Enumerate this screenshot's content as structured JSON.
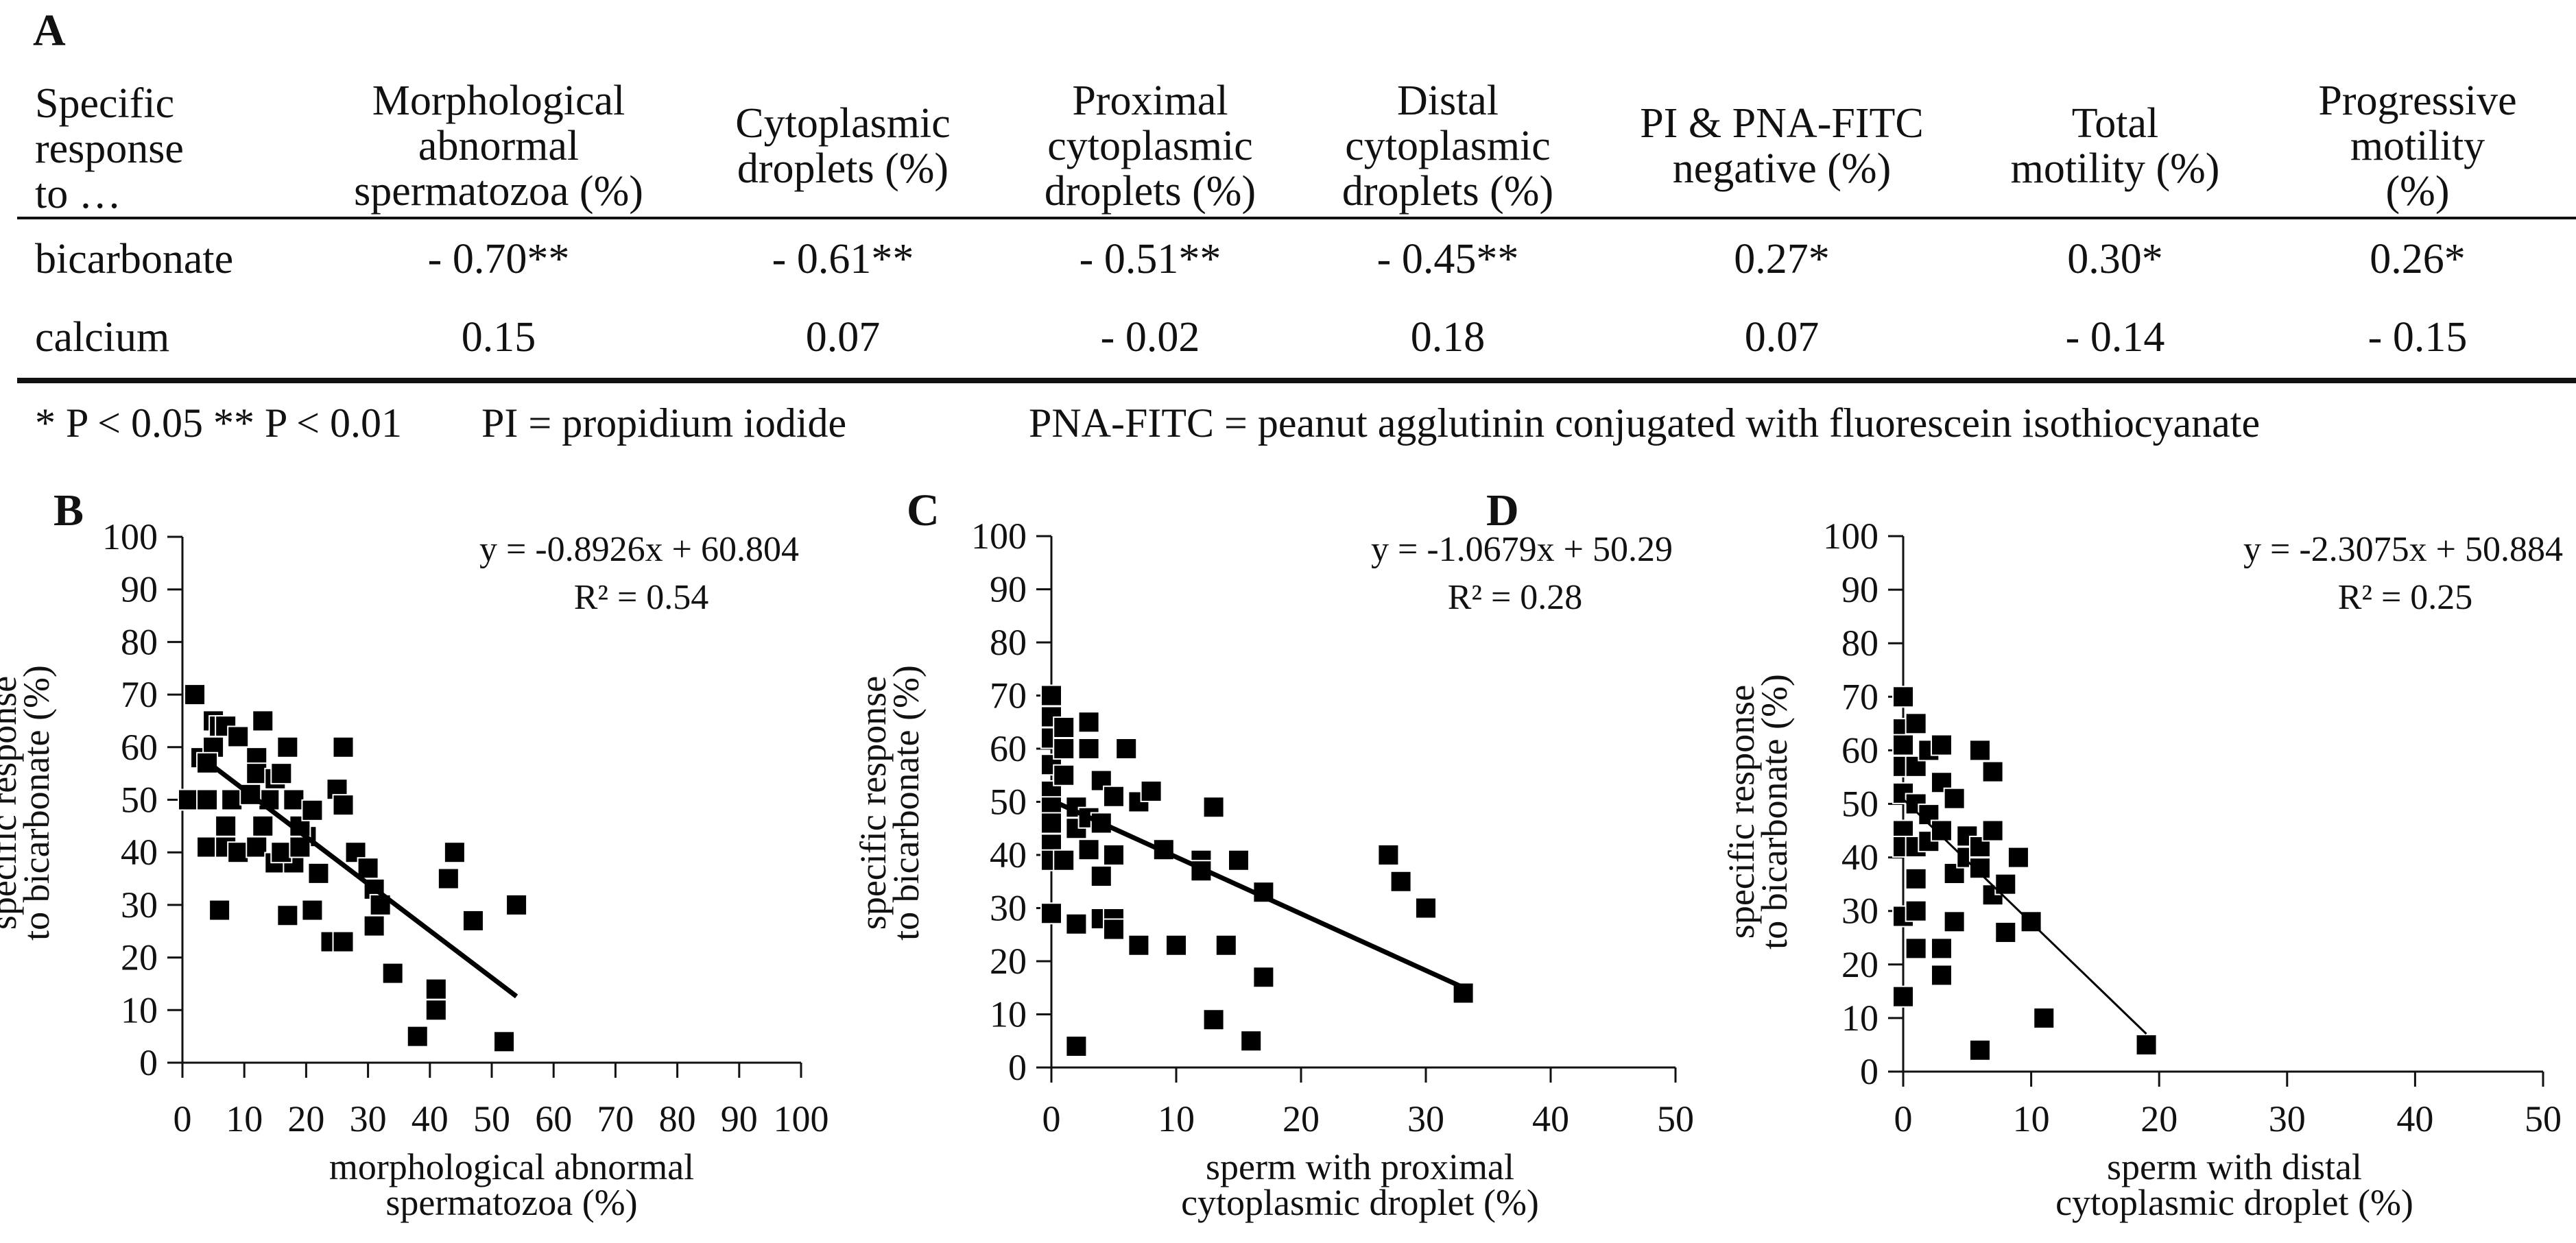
{
  "panel_labels": {
    "a": "A",
    "b": "B",
    "c": "C",
    "d": "D"
  },
  "table": {
    "corner_label": "Specific\nresponse\nto …",
    "columns": [
      "Morphological\nabnormal\nspermatozoa (%)",
      "Cytoplasmic\ndroplets (%)",
      "Proximal\ncytoplasmic\ndroplets (%)",
      "Distal\ncytoplasmic\ndroplets (%)",
      "PI & PNA-FITC\nnegative (%)",
      "Total\nmotility (%)",
      "Progressive\nmotility (%)"
    ],
    "rows": [
      {
        "label": "bicarbonate",
        "values": [
          "- 0.70**",
          "- 0.61**",
          "- 0.51**",
          "- 0.45**",
          "0.27*",
          "0.30*",
          "0.26*"
        ]
      },
      {
        "label": "calcium",
        "values": [
          "0.15",
          "0.07",
          "- 0.02",
          "0.18",
          "0.07",
          "- 0.14",
          "- 0.15"
        ]
      }
    ],
    "footnotes": [
      "* P < 0.05 ** P < 0.01",
      "PI = propidium iodide",
      "PNA-FITC = peanut agglutinin conjugated with fluorescein isothiocyanate"
    ]
  },
  "chart_data": [
    {
      "type": "scatter",
      "panel": "B",
      "xlabel": [
        "morphological abnormal",
        "spermatozoa (%)"
      ],
      "ylabel": [
        "specific response",
        "to bicarbonate (%)"
      ],
      "xlim": [
        0,
        100
      ],
      "ylim": [
        0,
        100
      ],
      "xticks": [
        "0",
        "10",
        "20",
        "30",
        "40",
        "50",
        "60",
        "70",
        "80",
        "90",
        "100"
      ],
      "yticks": [
        "0",
        "10",
        "20",
        "30",
        "40",
        "50",
        "60",
        "70",
        "80",
        "90",
        "100"
      ],
      "equation": "y = -0.8926x + 60.804",
      "r2": "R² = 0.54",
      "trend": {
        "slope": -0.8926,
        "intercept": 60.804,
        "x_range": [
          5,
          54
        ]
      },
      "points": [
        [
          2,
          70
        ],
        [
          3,
          58
        ],
        [
          5,
          65
        ],
        [
          6,
          64
        ],
        [
          7,
          64
        ],
        [
          9,
          62
        ],
        [
          5,
          60
        ],
        [
          4,
          57
        ],
        [
          1,
          50
        ],
        [
          4,
          50
        ],
        [
          8,
          50
        ],
        [
          7,
          45
        ],
        [
          4,
          41
        ],
        [
          7,
          41
        ],
        [
          9,
          40
        ],
        [
          13,
          65
        ],
        [
          12,
          58
        ],
        [
          12,
          55
        ],
        [
          15,
          54
        ],
        [
          16,
          55
        ],
        [
          17,
          60
        ],
        [
          14,
          50
        ],
        [
          11,
          51
        ],
        [
          18,
          50
        ],
        [
          13,
          45
        ],
        [
          12,
          41
        ],
        [
          15,
          38
        ],
        [
          18,
          38
        ],
        [
          20,
          43
        ],
        [
          19,
          45
        ],
        [
          21,
          48
        ],
        [
          22,
          36
        ],
        [
          21,
          29
        ],
        [
          6,
          29
        ],
        [
          17,
          28
        ],
        [
          25,
          52
        ],
        [
          26,
          49
        ],
        [
          26,
          60
        ],
        [
          28,
          40
        ],
        [
          30,
          37
        ],
        [
          31,
          33
        ],
        [
          32,
          30
        ],
        [
          31,
          26
        ],
        [
          24,
          23
        ],
        [
          26,
          23
        ],
        [
          34,
          17
        ],
        [
          41,
          14
        ],
        [
          41,
          10
        ],
        [
          38,
          5
        ],
        [
          43,
          35
        ],
        [
          44,
          40
        ],
        [
          47,
          27
        ],
        [
          52,
          4
        ],
        [
          54,
          30
        ],
        [
          16,
          40
        ],
        [
          19,
          41
        ]
      ]
    },
    {
      "type": "scatter",
      "panel": "C",
      "xlabel": [
        "sperm with proximal",
        "cytoplasmic droplet (%)"
      ],
      "ylabel": [
        "specific response",
        "to bicarbonate (%)"
      ],
      "xlim": [
        0,
        50
      ],
      "ylim": [
        0,
        100
      ],
      "xticks": [
        "0",
        "10",
        "20",
        "30",
        "40",
        "50"
      ],
      "yticks": [
        "0",
        "10",
        "20",
        "30",
        "40",
        "50",
        "60",
        "70",
        "80",
        "90",
        "100"
      ],
      "equation": "y = -1.0679x + 50.29",
      "r2": "R² = 0.28",
      "trend": {
        "slope": -1.0679,
        "intercept": 50.29,
        "x_range": [
          0,
          33
        ]
      },
      "points": [
        [
          0,
          70
        ],
        [
          0,
          66
        ],
        [
          0,
          62
        ],
        [
          0,
          57
        ],
        [
          0,
          52
        ],
        [
          0,
          49
        ],
        [
          0,
          46
        ],
        [
          0,
          42
        ],
        [
          0,
          39
        ],
        [
          0,
          29
        ],
        [
          1,
          64
        ],
        [
          1,
          60
        ],
        [
          1,
          55
        ],
        [
          1,
          39
        ],
        [
          2,
          49
        ],
        [
          2,
          45
        ],
        [
          2,
          27
        ],
        [
          2,
          4
        ],
        [
          3,
          65
        ],
        [
          3,
          60
        ],
        [
          3,
          41
        ],
        [
          3,
          47
        ],
        [
          4,
          54
        ],
        [
          4,
          46
        ],
        [
          4,
          36
        ],
        [
          4,
          28
        ],
        [
          5,
          51
        ],
        [
          5,
          40
        ],
        [
          5,
          28
        ],
        [
          5,
          26
        ],
        [
          6,
          60
        ],
        [
          7,
          23
        ],
        [
          7,
          50
        ],
        [
          8,
          52
        ],
        [
          9,
          41
        ],
        [
          10,
          23
        ],
        [
          12,
          39
        ],
        [
          12,
          37
        ],
        [
          13,
          49
        ],
        [
          13,
          9
        ],
        [
          14,
          23
        ],
        [
          15,
          39
        ],
        [
          16,
          5
        ],
        [
          17,
          33
        ],
        [
          17,
          17
        ],
        [
          27,
          40
        ],
        [
          28,
          35
        ],
        [
          30,
          30
        ],
        [
          33,
          14
        ]
      ]
    },
    {
      "type": "scatter",
      "panel": "D",
      "xlabel": [
        "sperm with distal",
        "cytoplasmic droplet (%)"
      ],
      "ylabel": [
        "specific response",
        "to bicarbonate (%)"
      ],
      "xlim": [
        0,
        50
      ],
      "ylim": [
        0,
        100
      ],
      "xticks": [
        "0",
        "10",
        "20",
        "30",
        "40",
        "50"
      ],
      "yticks": [
        "0",
        "10",
        "20",
        "30",
        "40",
        "50",
        "60",
        "70",
        "80",
        "90",
        "100"
      ],
      "equation": "y = -2.3075x + 50.884",
      "r2": "R² = 0.25",
      "trend": {
        "slope": -2.3075,
        "intercept": 50.884,
        "x_range": [
          0,
          19
        ]
      },
      "points": [
        [
          0,
          70
        ],
        [
          0,
          64
        ],
        [
          0,
          61
        ],
        [
          0,
          57
        ],
        [
          0,
          52
        ],
        [
          0,
          45
        ],
        [
          0,
          42
        ],
        [
          0,
          29
        ],
        [
          0,
          14
        ],
        [
          1,
          65
        ],
        [
          1,
          57
        ],
        [
          1,
          50
        ],
        [
          1,
          42
        ],
        [
          1,
          36
        ],
        [
          1,
          30
        ],
        [
          1,
          23
        ],
        [
          2,
          60
        ],
        [
          2,
          48
        ],
        [
          2,
          43
        ],
        [
          3,
          61
        ],
        [
          3,
          54
        ],
        [
          3,
          45
        ],
        [
          3,
          23
        ],
        [
          3,
          18
        ],
        [
          4,
          51
        ],
        [
          4,
          37
        ],
        [
          4,
          28
        ],
        [
          5,
          44
        ],
        [
          5,
          40
        ],
        [
          6,
          42
        ],
        [
          6,
          38
        ],
        [
          6,
          4
        ],
        [
          6,
          60
        ],
        [
          7,
          56
        ],
        [
          7,
          45
        ],
        [
          7,
          33
        ],
        [
          8,
          26
        ],
        [
          8,
          35
        ],
        [
          9,
          40
        ],
        [
          10,
          28
        ],
        [
          11,
          10
        ],
        [
          19,
          5
        ]
      ]
    }
  ]
}
